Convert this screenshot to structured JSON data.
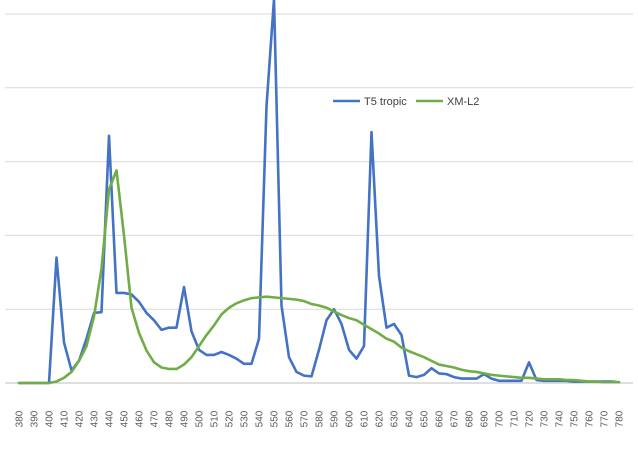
{
  "chart_data": {
    "type": "line",
    "title": "",
    "xlabel": "",
    "ylabel": "",
    "x": [
      380,
      385,
      390,
      395,
      400,
      405,
      410,
      415,
      420,
      425,
      430,
      435,
      440,
      445,
      450,
      455,
      460,
      465,
      470,
      475,
      480,
      485,
      490,
      495,
      500,
      505,
      510,
      515,
      520,
      525,
      530,
      535,
      540,
      545,
      550,
      555,
      560,
      565,
      570,
      575,
      580,
      585,
      590,
      595,
      600,
      605,
      610,
      615,
      620,
      625,
      630,
      635,
      640,
      645,
      650,
      655,
      660,
      665,
      670,
      675,
      680,
      685,
      690,
      695,
      700,
      705,
      710,
      715,
      720,
      725,
      730,
      735,
      740,
      745,
      750,
      755,
      760,
      765,
      770,
      775,
      780
    ],
    "x_ticks": [
      "380",
      "390",
      "400",
      "410",
      "420",
      "430",
      "440",
      "450",
      "460",
      "470",
      "480",
      "490",
      "500",
      "510",
      "520",
      "530",
      "540",
      "550",
      "560",
      "570",
      "580",
      "590",
      "600",
      "610",
      "620",
      "630",
      "640",
      "650",
      "660",
      "670",
      "680",
      "690",
      "700",
      "710",
      "720",
      "730",
      "740",
      "750",
      "760",
      "770",
      "780"
    ],
    "ylim": [
      0,
      5
    ],
    "y_gridlines": [
      0,
      1,
      2,
      3,
      4,
      5
    ],
    "grid": true,
    "legend_position": "top-right",
    "series": [
      {
        "name": "T5 tropic",
        "color": "#4472c4",
        "values": [
          0.0,
          0.0,
          0.0,
          0.0,
          0.0,
          1.7,
          0.55,
          0.17,
          0.3,
          0.6,
          0.95,
          0.96,
          3.35,
          1.22,
          1.22,
          1.2,
          1.1,
          0.95,
          0.85,
          0.72,
          0.75,
          0.75,
          1.3,
          0.7,
          0.45,
          0.38,
          0.38,
          0.42,
          0.38,
          0.33,
          0.26,
          0.26,
          0.6,
          3.75,
          5.2,
          1.05,
          0.35,
          0.15,
          0.1,
          0.09,
          0.45,
          0.85,
          1.0,
          0.8,
          0.45,
          0.33,
          0.5,
          3.4,
          1.45,
          0.75,
          0.8,
          0.65,
          0.1,
          0.08,
          0.11,
          0.2,
          0.13,
          0.12,
          0.08,
          0.06,
          0.06,
          0.06,
          0.12,
          0.06,
          0.03,
          0.03,
          0.03,
          0.03,
          0.28,
          0.04,
          0.03,
          0.03,
          0.03,
          0.03,
          0.02,
          0.02,
          0.02,
          0.02,
          0.02,
          0.02,
          0.01
        ]
      },
      {
        "name": "XM-L2",
        "color": "#70ad47",
        "values": [
          0.0,
          0.0,
          0.0,
          0.0,
          0.0,
          0.02,
          0.07,
          0.15,
          0.3,
          0.5,
          0.9,
          1.55,
          2.62,
          2.88,
          2.0,
          1.02,
          0.68,
          0.44,
          0.28,
          0.21,
          0.19,
          0.19,
          0.25,
          0.35,
          0.5,
          0.65,
          0.78,
          0.93,
          1.02,
          1.08,
          1.12,
          1.15,
          1.16,
          1.17,
          1.16,
          1.15,
          1.14,
          1.13,
          1.11,
          1.07,
          1.05,
          1.02,
          0.97,
          0.92,
          0.88,
          0.85,
          0.79,
          0.73,
          0.67,
          0.6,
          0.56,
          0.48,
          0.43,
          0.39,
          0.35,
          0.3,
          0.25,
          0.23,
          0.21,
          0.18,
          0.16,
          0.15,
          0.13,
          0.11,
          0.1,
          0.09,
          0.08,
          0.07,
          0.07,
          0.06,
          0.05,
          0.05,
          0.05,
          0.04,
          0.04,
          0.03,
          0.02,
          0.02,
          0.01,
          0.01,
          0.01
        ]
      }
    ]
  }
}
